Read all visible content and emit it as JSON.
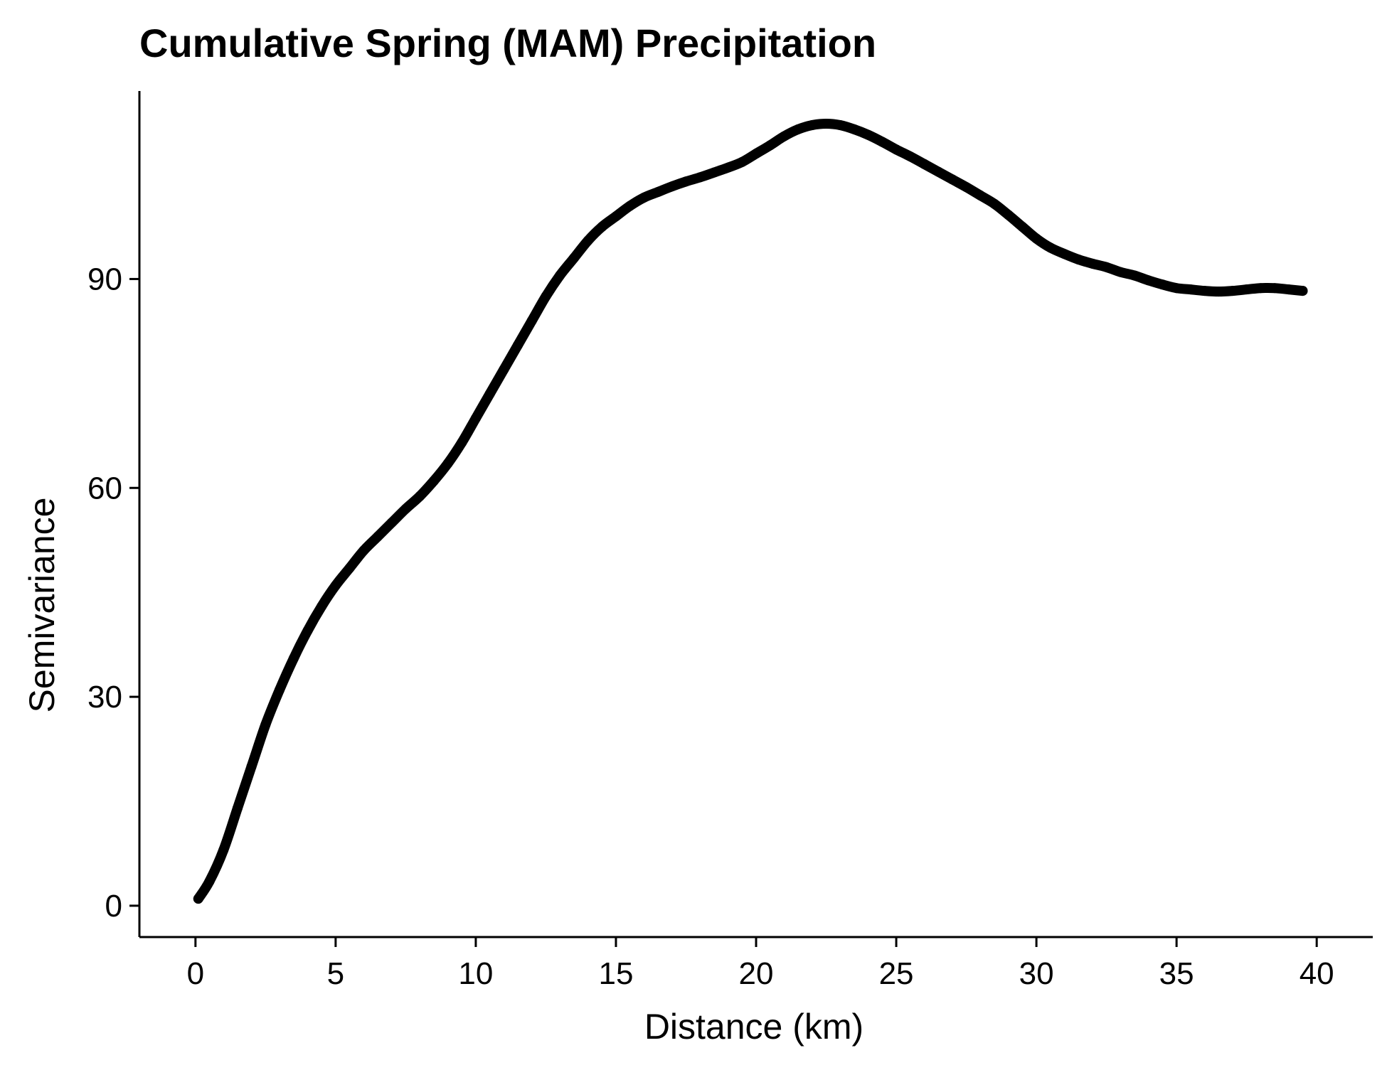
{
  "chart_data": {
    "type": "line",
    "title": "Cumulative Spring (MAM) Precipitation",
    "xlabel": "Distance (km)",
    "ylabel": "Semivariance",
    "xlim": [
      -2,
      42
    ],
    "ylim": [
      -4.5,
      117
    ],
    "x_ticks": [
      0,
      5,
      10,
      15,
      20,
      25,
      30,
      35,
      40
    ],
    "x_tick_labels": [
      "0",
      "5",
      "10",
      "15",
      "20",
      "25",
      "30",
      "35",
      "40"
    ],
    "y_ticks": [
      0,
      30,
      60,
      90
    ],
    "y_tick_labels": [
      "0",
      "30",
      "60",
      "90"
    ],
    "grid": false,
    "legend": "none",
    "color": "#000000",
    "series": [
      {
        "x": [
          0.1,
          0.5,
          1,
          1.5,
          2,
          2.5,
          3,
          3.5,
          4,
          4.5,
          5,
          5.5,
          6,
          6.5,
          7,
          7.5,
          8,
          8.5,
          9,
          9.5,
          10,
          10.5,
          11,
          11.5,
          12,
          12.5,
          13,
          13.5,
          14,
          14.5,
          15,
          15.5,
          16,
          16.5,
          17,
          17.5,
          18,
          18.5,
          19,
          19.5,
          20,
          20.5,
          21,
          21.5,
          22,
          22.5,
          23,
          23.5,
          24,
          24.5,
          25,
          25.5,
          26,
          26.5,
          27,
          27.5,
          28,
          28.5,
          29,
          29.5,
          30,
          30.5,
          31,
          31.5,
          32,
          32.5,
          33,
          33.5,
          34,
          34.5,
          35,
          35.5,
          36,
          36.5,
          37,
          37.5,
          38,
          38.5,
          39,
          39.5
        ],
        "y": [
          1.0,
          3.5,
          8.0,
          14.0,
          20.0,
          26.0,
          31.0,
          35.5,
          39.5,
          43.0,
          46.0,
          48.5,
          51.0,
          53.0,
          55.0,
          57.0,
          58.8,
          61.0,
          63.5,
          66.5,
          70.0,
          73.5,
          77.0,
          80.5,
          84.0,
          87.5,
          90.5,
          93.0,
          95.5,
          97.5,
          99.0,
          100.5,
          101.7,
          102.5,
          103.3,
          104.0,
          104.6,
          105.3,
          106.0,
          106.8,
          108.0,
          109.2,
          110.5,
          111.5,
          112.1,
          112.3,
          112.1,
          111.5,
          110.7,
          109.7,
          108.6,
          107.6,
          106.5,
          105.4,
          104.3,
          103.2,
          102.0,
          100.8,
          99.2,
          97.5,
          95.8,
          94.5,
          93.6,
          92.8,
          92.2,
          91.7,
          91.0,
          90.5,
          89.8,
          89.2,
          88.7,
          88.5,
          88.3,
          88.2,
          88.3,
          88.5,
          88.7,
          88.7,
          88.5,
          88.3
        ]
      }
    ]
  }
}
